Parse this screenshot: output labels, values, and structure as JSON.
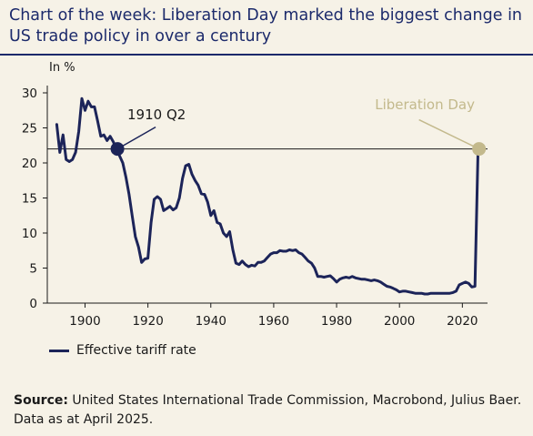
{
  "title": "Chart of the week: Liberation Day marked the biggest change in US trade policy in over a century",
  "unit_label": "In %",
  "legend_label": "Effective tariff rate",
  "source_label": "Source:",
  "source_text": " United States International Trade Commission, Macrobond, Julius Baer. Data as at April 2025.",
  "colors": {
    "series": "#1c2459",
    "liberation": "#c3b98c",
    "title": "#1c2a6b",
    "background": "#f6f2e7"
  },
  "chart_data": {
    "type": "line",
    "xlim": [
      1888,
      2028
    ],
    "ylim": [
      0,
      30
    ],
    "x_ticks": [
      1900,
      1920,
      1940,
      1960,
      1980,
      2000,
      2020
    ],
    "y_ticks": [
      0,
      5,
      10,
      15,
      20,
      25,
      30
    ],
    "reference_line": 22,
    "series": [
      {
        "name": "Effective tariff rate",
        "points": [
          [
            1891,
            25.5
          ],
          [
            1892,
            21.5
          ],
          [
            1893,
            24.0
          ],
          [
            1894,
            20.5
          ],
          [
            1895,
            20.2
          ],
          [
            1896,
            20.5
          ],
          [
            1897,
            21.5
          ],
          [
            1898,
            24.5
          ],
          [
            1899,
            29.2
          ],
          [
            1900,
            27.5
          ],
          [
            1901,
            28.8
          ],
          [
            1902,
            28.0
          ],
          [
            1903,
            28.0
          ],
          [
            1904,
            26.0
          ],
          [
            1905,
            23.8
          ],
          [
            1906,
            24.0
          ],
          [
            1907,
            23.2
          ],
          [
            1908,
            23.8
          ],
          [
            1909,
            23.0
          ],
          [
            1910,
            22.0
          ],
          [
            1911,
            21.0
          ],
          [
            1912,
            20.0
          ],
          [
            1913,
            18.0
          ],
          [
            1914,
            15.5
          ],
          [
            1915,
            12.5
          ],
          [
            1916,
            9.5
          ],
          [
            1917,
            8.0
          ],
          [
            1918,
            5.8
          ],
          [
            1919,
            6.3
          ],
          [
            1920,
            6.4
          ],
          [
            1921,
            11.5
          ],
          [
            1922,
            14.8
          ],
          [
            1923,
            15.2
          ],
          [
            1924,
            14.8
          ],
          [
            1925,
            13.2
          ],
          [
            1926,
            13.5
          ],
          [
            1927,
            13.8
          ],
          [
            1928,
            13.3
          ],
          [
            1929,
            13.6
          ],
          [
            1930,
            15.0
          ],
          [
            1931,
            17.8
          ],
          [
            1932,
            19.6
          ],
          [
            1933,
            19.8
          ],
          [
            1934,
            18.4
          ],
          [
            1935,
            17.5
          ],
          [
            1936,
            16.8
          ],
          [
            1937,
            15.6
          ],
          [
            1938,
            15.5
          ],
          [
            1939,
            14.4
          ],
          [
            1940,
            12.5
          ],
          [
            1941,
            13.2
          ],
          [
            1942,
            11.5
          ],
          [
            1943,
            11.3
          ],
          [
            1944,
            10.0
          ],
          [
            1945,
            9.5
          ],
          [
            1946,
            10.2
          ],
          [
            1947,
            7.6
          ],
          [
            1948,
            5.7
          ],
          [
            1949,
            5.5
          ],
          [
            1950,
            6.0
          ],
          [
            1951,
            5.5
          ],
          [
            1952,
            5.2
          ],
          [
            1953,
            5.4
          ],
          [
            1954,
            5.3
          ],
          [
            1955,
            5.8
          ],
          [
            1956,
            5.8
          ],
          [
            1957,
            6.0
          ],
          [
            1958,
            6.5
          ],
          [
            1959,
            7.0
          ],
          [
            1960,
            7.2
          ],
          [
            1961,
            7.2
          ],
          [
            1962,
            7.5
          ],
          [
            1963,
            7.4
          ],
          [
            1964,
            7.4
          ],
          [
            1965,
            7.6
          ],
          [
            1966,
            7.5
          ],
          [
            1967,
            7.6
          ],
          [
            1968,
            7.2
          ],
          [
            1969,
            7.0
          ],
          [
            1970,
            6.5
          ],
          [
            1971,
            6.0
          ],
          [
            1972,
            5.7
          ],
          [
            1973,
            5.0
          ],
          [
            1974,
            3.8
          ],
          [
            1975,
            3.8
          ],
          [
            1976,
            3.7
          ],
          [
            1977,
            3.8
          ],
          [
            1978,
            3.9
          ],
          [
            1979,
            3.5
          ],
          [
            1980,
            3.0
          ],
          [
            1981,
            3.4
          ],
          [
            1982,
            3.6
          ],
          [
            1983,
            3.7
          ],
          [
            1984,
            3.6
          ],
          [
            1985,
            3.8
          ],
          [
            1986,
            3.6
          ],
          [
            1987,
            3.5
          ],
          [
            1988,
            3.4
          ],
          [
            1989,
            3.4
          ],
          [
            1990,
            3.3
          ],
          [
            1991,
            3.2
          ],
          [
            1992,
            3.3
          ],
          [
            1993,
            3.2
          ],
          [
            1994,
            3.0
          ],
          [
            1995,
            2.7
          ],
          [
            1996,
            2.4
          ],
          [
            1997,
            2.3
          ],
          [
            1998,
            2.1
          ],
          [
            1999,
            1.9
          ],
          [
            2000,
            1.6
          ],
          [
            2001,
            1.7
          ],
          [
            2002,
            1.7
          ],
          [
            2003,
            1.6
          ],
          [
            2004,
            1.5
          ],
          [
            2005,
            1.4
          ],
          [
            2006,
            1.4
          ],
          [
            2007,
            1.4
          ],
          [
            2008,
            1.3
          ],
          [
            2009,
            1.3
          ],
          [
            2010,
            1.4
          ],
          [
            2011,
            1.4
          ],
          [
            2012,
            1.4
          ],
          [
            2013,
            1.4
          ],
          [
            2014,
            1.4
          ],
          [
            2015,
            1.4
          ],
          [
            2016,
            1.4
          ],
          [
            2017,
            1.5
          ],
          [
            2018,
            1.7
          ],
          [
            2019,
            2.6
          ],
          [
            2020,
            2.8
          ],
          [
            2021,
            3.0
          ],
          [
            2022,
            2.8
          ],
          [
            2023,
            2.3
          ],
          [
            2024,
            2.4
          ],
          [
            2025,
            22.0
          ]
        ]
      }
    ],
    "annotations": [
      {
        "label": "1910 Q2",
        "x": 1910.3,
        "y": 22
      },
      {
        "label": "Liberation Day",
        "x": 2025.3,
        "y": 22
      }
    ]
  }
}
